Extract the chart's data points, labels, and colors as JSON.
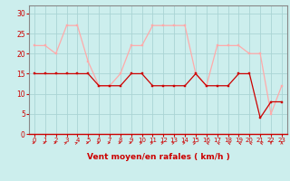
{
  "x": [
    0,
    1,
    2,
    3,
    4,
    5,
    6,
    7,
    8,
    9,
    10,
    11,
    12,
    13,
    14,
    15,
    16,
    17,
    18,
    19,
    20,
    21,
    22,
    23
  ],
  "wind_avg": [
    15,
    15,
    15,
    15,
    15,
    15,
    12,
    12,
    12,
    15,
    15,
    12,
    12,
    12,
    12,
    15,
    12,
    12,
    12,
    15,
    15,
    4,
    8,
    8
  ],
  "wind_gust": [
    22,
    22,
    20,
    27,
    27,
    18,
    12,
    12,
    15,
    22,
    22,
    27,
    27,
    27,
    27,
    15,
    12,
    22,
    22,
    22,
    20,
    20,
    5,
    12
  ],
  "bg_color": "#cceeed",
  "grid_color": "#aad4d4",
  "avg_color": "#cc0000",
  "gust_color": "#ffaaaa",
  "xlabel": "Vent moyen/en rafales ( km/h )",
  "xlabel_color": "#cc0000",
  "tick_color": "#cc0000",
  "spine_color": "#888888",
  "ylim": [
    0,
    32
  ],
  "yticks": [
    0,
    5,
    10,
    15,
    20,
    25,
    30
  ],
  "xticks": [
    0,
    1,
    2,
    3,
    4,
    5,
    6,
    7,
    8,
    9,
    10,
    11,
    12,
    13,
    14,
    15,
    16,
    17,
    18,
    19,
    20,
    21,
    22,
    23
  ],
  "arrow_directions": [
    0,
    0,
    0,
    30,
    30,
    0,
    0,
    0,
    0,
    0,
    30,
    30,
    30,
    30,
    30,
    45,
    135,
    135,
    135,
    135,
    135,
    135,
    270,
    90
  ]
}
